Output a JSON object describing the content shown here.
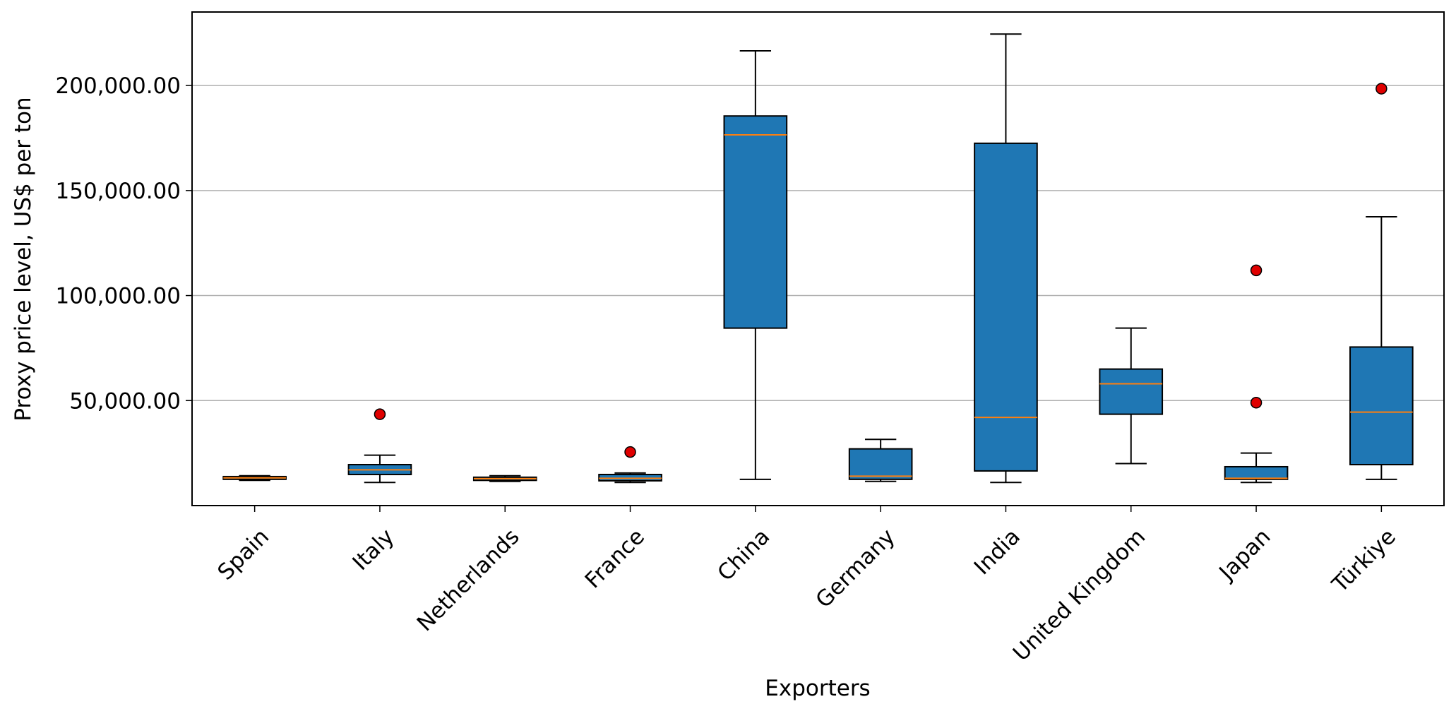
{
  "chart_data": {
    "type": "box",
    "title": "",
    "xlabel": "Exporters",
    "ylabel": "Proxy price level, US$ per ton",
    "ylim": [
      0,
      235000
    ],
    "yticks": [
      50000,
      100000,
      150000,
      200000
    ],
    "ytick_labels": [
      "50,000.00",
      "100,000.00",
      "150,000.00",
      "200,000.00"
    ],
    "grid": "horizontal",
    "colors": {
      "box_fill": "#1f77b4",
      "median": "#ff7f0e",
      "outlier": "#e00000",
      "grid": "#b0b0b0"
    },
    "categories": [
      "Spain",
      "Italy",
      "Netherlands",
      "France",
      "China",
      "Germany",
      "India",
      "United Kingdom",
      "Japan",
      "Türkiye"
    ],
    "boxes": [
      {
        "label": "Spain",
        "whislo": 12000,
        "q1": 12500,
        "med": 13200,
        "q3": 13800,
        "whishi": 14200,
        "fliers": []
      },
      {
        "label": "Italy",
        "whislo": 11000,
        "q1": 14800,
        "med": 17000,
        "q3": 19500,
        "whishi": 24000,
        "fliers": [
          43500
        ]
      },
      {
        "label": "Netherlands",
        "whislo": 11500,
        "q1": 12000,
        "med": 12800,
        "q3": 13500,
        "whishi": 14200,
        "fliers": []
      },
      {
        "label": "France",
        "whislo": 11000,
        "q1": 11800,
        "med": 13000,
        "q3": 14800,
        "whishi": 15500,
        "fliers": [
          25500
        ]
      },
      {
        "label": "China",
        "whislo": 12500,
        "q1": 84500,
        "med": 176500,
        "q3": 185500,
        "whishi": 216500,
        "fliers": []
      },
      {
        "label": "Germany",
        "whislo": 11500,
        "q1": 12500,
        "med": 14000,
        "q3": 27000,
        "whishi": 31500,
        "fliers": []
      },
      {
        "label": "India",
        "whislo": 11000,
        "q1": 16500,
        "med": 42000,
        "q3": 172500,
        "whishi": 224500,
        "fliers": []
      },
      {
        "label": "United Kingdom",
        "whislo": 20000,
        "q1": 43500,
        "med": 58000,
        "q3": 65000,
        "whishi": 84500,
        "fliers": []
      },
      {
        "label": "Japan",
        "whislo": 11000,
        "q1": 12500,
        "med": 13000,
        "q3": 18500,
        "whishi": 25000,
        "fliers": [
          49000,
          112000
        ]
      },
      {
        "label": "Türkiye",
        "whislo": 12500,
        "q1": 19500,
        "med": 44500,
        "q3": 75500,
        "whishi": 137500,
        "fliers": [
          198500
        ]
      }
    ]
  }
}
